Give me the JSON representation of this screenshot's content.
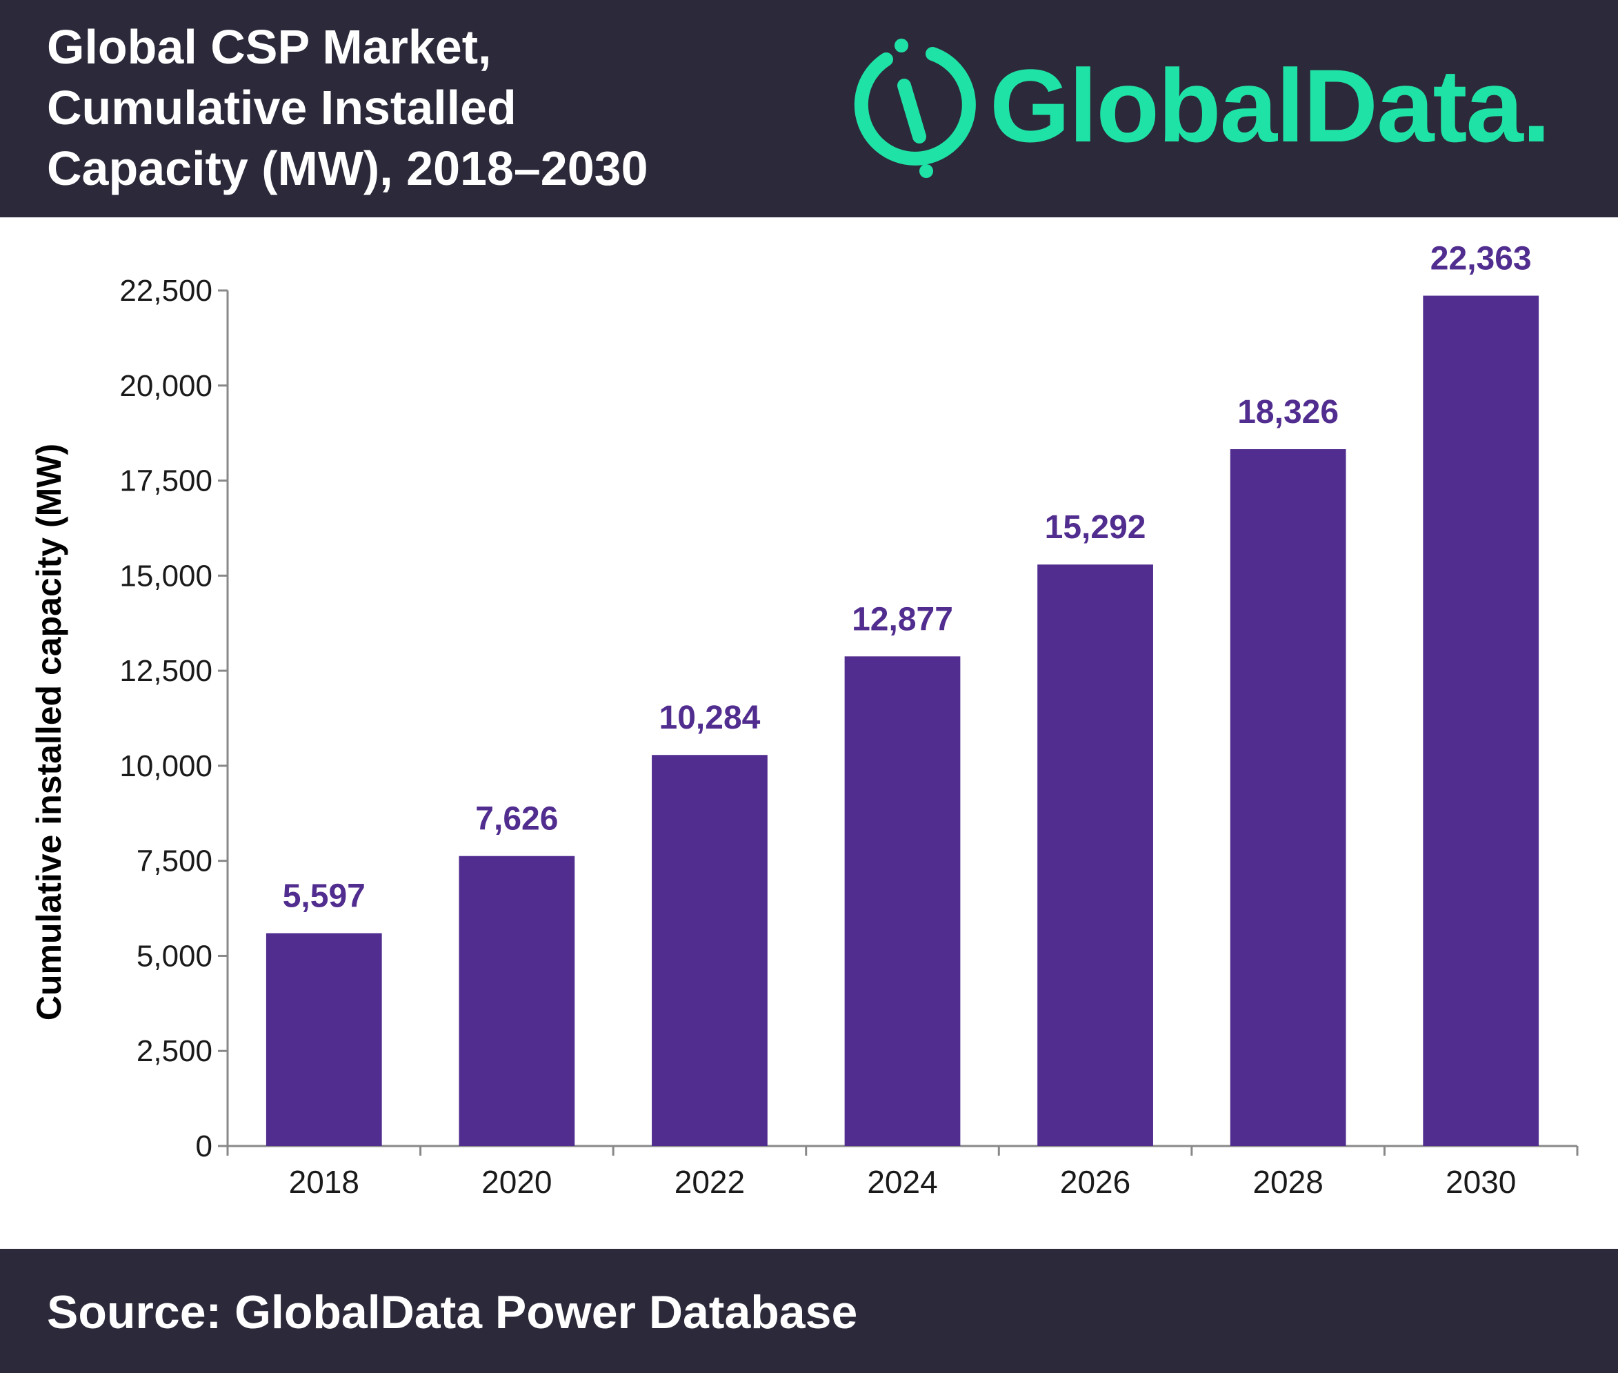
{
  "header": {
    "title": "Global CSP Market,\nCumulative Installed\nCapacity (MW), 2018–2030",
    "logo_text": "GlobalData."
  },
  "footer": {
    "source": "Source: GlobalData Power Database"
  },
  "colors": {
    "header_bg": "#2c2a3a",
    "bar": "#512d8f",
    "label": "#512d8f",
    "logo": "#1fe3a6",
    "axis": "#888888"
  },
  "chart_data": {
    "type": "bar",
    "categories": [
      "2018",
      "2020",
      "2022",
      "2024",
      "2026",
      "2028",
      "2030"
    ],
    "values": [
      5597,
      7626,
      10284,
      12877,
      15292,
      18326,
      22363
    ],
    "value_labels": [
      "5,597",
      "7,626",
      "10,284",
      "12,877",
      "15,292",
      "18,326",
      "22,363"
    ],
    "ylabel": "Cumulative installed capacity (MW)",
    "ylim": [
      0,
      22500
    ],
    "yticks": [
      0,
      2500,
      5000,
      7500,
      10000,
      12500,
      15000,
      17500,
      20000,
      22500
    ],
    "ytick_labels": [
      "0",
      "2,500",
      "5,000",
      "7,500",
      "10,000",
      "12,500",
      "15,000",
      "17,500",
      "20,000",
      "22,500"
    ],
    "grid": false,
    "legend": "none"
  }
}
